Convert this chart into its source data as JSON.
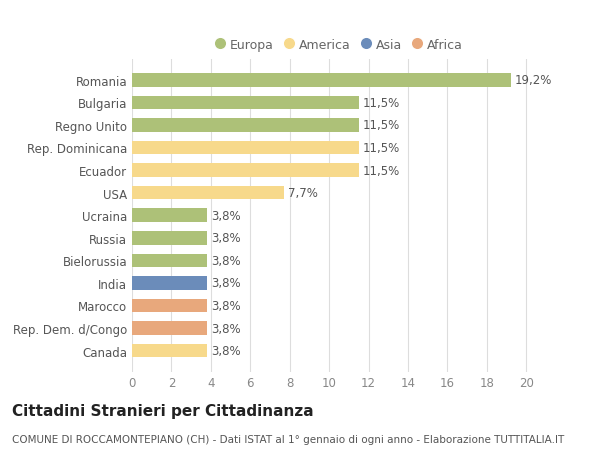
{
  "title": "Cittadini Stranieri per Cittadinanza",
  "subtitle": "COMUNE DI ROCCAMONTEPIANO (CH) - Dati ISTAT al 1° gennaio di ogni anno - Elaborazione TUTTITALIA.IT",
  "categories": [
    "Romania",
    "Bulgaria",
    "Regno Unito",
    "Rep. Dominicana",
    "Ecuador",
    "USA",
    "Ucraina",
    "Russia",
    "Bielorussia",
    "India",
    "Marocco",
    "Rep. Dem. d/Congo",
    "Canada"
  ],
  "values": [
    19.2,
    11.5,
    11.5,
    11.5,
    11.5,
    7.7,
    3.8,
    3.8,
    3.8,
    3.8,
    3.8,
    3.8,
    3.8
  ],
  "labels": [
    "19,2%",
    "11,5%",
    "11,5%",
    "11,5%",
    "11,5%",
    "7,7%",
    "3,8%",
    "3,8%",
    "3,8%",
    "3,8%",
    "3,8%",
    "3,8%",
    "3,8%"
  ],
  "continents": [
    "Europa",
    "Europa",
    "Europa",
    "America",
    "America",
    "America",
    "Europa",
    "Europa",
    "Europa",
    "Asia",
    "Africa",
    "Africa",
    "America"
  ],
  "colors": {
    "Europa": "#adc178",
    "America": "#f7d98b",
    "Asia": "#6b8cba",
    "Africa": "#e8a87c"
  },
  "legend_order": [
    "Europa",
    "America",
    "Asia",
    "Africa"
  ],
  "xlim": [
    0,
    21
  ],
  "xticks": [
    0,
    2,
    4,
    6,
    8,
    10,
    12,
    14,
    16,
    18,
    20
  ],
  "background_color": "#ffffff",
  "plot_bg_color": "#ffffff",
  "grid_color": "#dddddd",
  "title_fontsize": 11,
  "subtitle_fontsize": 7.5,
  "tick_fontsize": 8.5,
  "label_fontsize": 8.5,
  "legend_fontsize": 9,
  "bar_height": 0.6
}
